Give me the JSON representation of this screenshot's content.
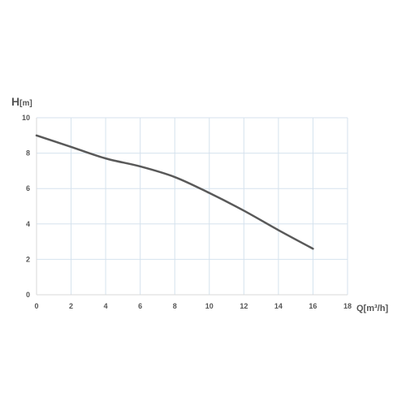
{
  "chart_data": {
    "type": "line",
    "title": "",
    "ylabel": {
      "symbol": "H",
      "unit": "[m]"
    },
    "xlabel": "Q[m³/h]",
    "xlim": [
      0,
      18
    ],
    "ylim": [
      0,
      10
    ],
    "xticks": [
      "0",
      "2",
      "4",
      "6",
      "8",
      "10",
      "12",
      "14",
      "16",
      "18"
    ],
    "yticks": [
      "0",
      "2",
      "4",
      "6",
      "8",
      "10"
    ],
    "grid": true,
    "legend": "none",
    "series": [
      {
        "color": "#595959",
        "x": [
          0,
          2,
          4,
          6,
          8,
          10,
          12,
          14,
          16
        ],
        "y": [
          9.0,
          8.35,
          7.7,
          7.25,
          6.65,
          5.75,
          4.75,
          3.65,
          2.6
        ]
      }
    ],
    "colors": {
      "grid": "#d5e2ee",
      "axis": "#d9d9d9",
      "text": "#555555"
    }
  }
}
